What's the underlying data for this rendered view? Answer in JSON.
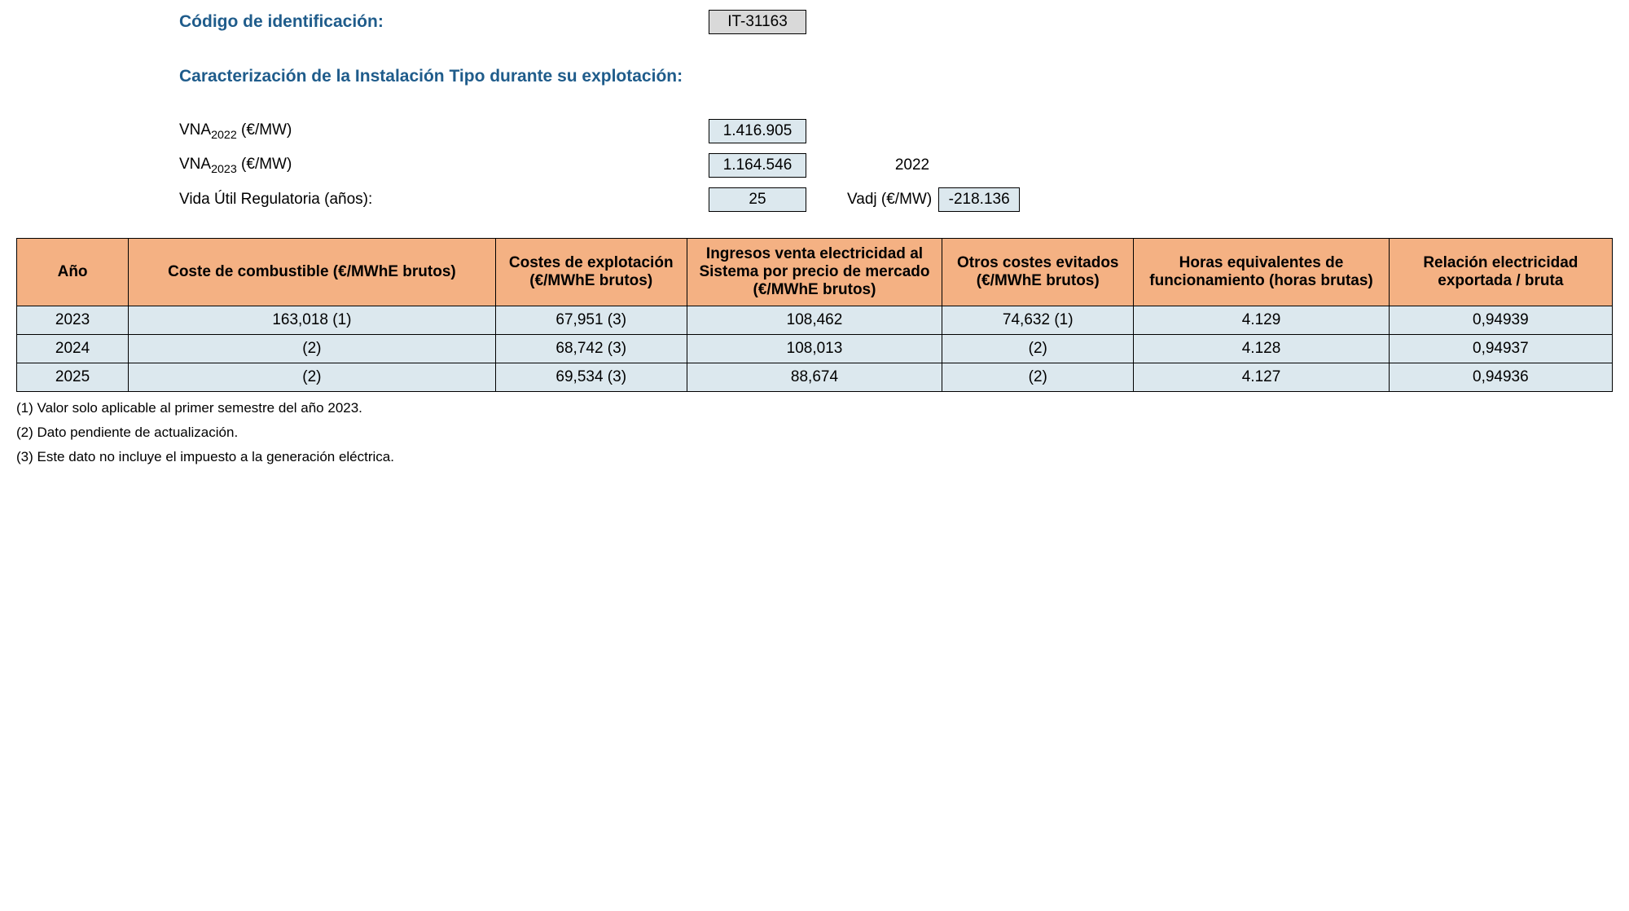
{
  "header": {
    "id_label": "Código de identificación:",
    "id_value": "IT-31163",
    "section_title": "Caracterización de la Instalación Tipo durante su explotación:"
  },
  "params": {
    "vna2022_label_pre": "VNA",
    "vna2022_label_sub": "2022",
    "vna2022_label_post": " (€/MW)",
    "vna2022_value": "1.416.905",
    "vna2023_label_pre": "VNA",
    "vna2023_label_sub": "2023",
    "vna2023_label_post": " (€/MW)",
    "vna2023_value": "1.164.546",
    "year_extra": "2022",
    "vida_label": "Vida Útil Regulatoria (años):",
    "vida_value": "25",
    "vadj_label": "Vadj (€/MW)",
    "vadj_value": "-218.136"
  },
  "table": {
    "headers": {
      "c0": "Año",
      "c1": "Coste de combustible (€/MWhE brutos)",
      "c2": "Costes de explotación (€/MWhE brutos)",
      "c3": "Ingresos venta electricidad al Sistema por precio de mercado (€/MWhE brutos)",
      "c4": "Otros costes evitados (€/MWhE brutos)",
      "c5": "Horas equivalentes de funcionamiento (horas brutas)",
      "c6": "Relación electricidad exportada / bruta"
    },
    "rows": [
      {
        "c0": "2023",
        "c1": "163,018 (1)",
        "c2": "67,951 (3)",
        "c3": "108,462",
        "c4": "74,632 (1)",
        "c5": "4.129",
        "c6": "0,94939"
      },
      {
        "c0": "2024",
        "c1": "(2)",
        "c2": "68,742 (3)",
        "c3": "108,013",
        "c4": "(2)",
        "c5": "4.128",
        "c6": "0,94937"
      },
      {
        "c0": "2025",
        "c1": "(2)",
        "c2": "69,534 (3)",
        "c3": "88,674",
        "c4": "(2)",
        "c5": "4.127",
        "c6": "0,94936"
      }
    ],
    "col_widths": [
      "7%",
      "23%",
      "12%",
      "16%",
      "12%",
      "16%",
      "14%"
    ]
  },
  "footnotes": {
    "n1": "(1) Valor solo aplicable al primer semestre del año 2023.",
    "n2": "(2) Dato pendiente de actualización.",
    "n3": "(3) Este dato no incluye el impuesto a la generación eléctrica."
  },
  "colors": {
    "title": "#1f5c8b",
    "header_bg": "#f4b183",
    "cell_bg": "#dce8ee",
    "grey_bg": "#d9d9d9"
  }
}
